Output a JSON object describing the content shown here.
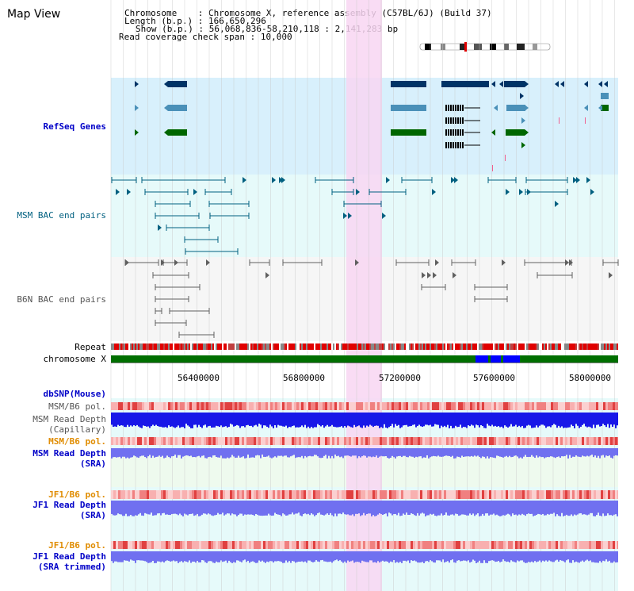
{
  "title": "Map View",
  "info": {
    "chromosome_key": "Chromosome",
    "chromosome_val": "Chromosome X, reference assembly (C57BL/6J) (Build 37)",
    "length_key": "Length (b.p.)",
    "length_val": "166,650,296",
    "show_key": "Show (b.p.)",
    "show_val": "56,068,836-58,210,118 : 2,141,283 bp",
    "span_key": "Read coverage check span",
    "span_val": "10,000"
  },
  "tracks": {
    "refseq": "RefSeq Genes",
    "msm_bac": "MSM BAC end pairs",
    "b6n_bac": "B6N BAC end pairs",
    "repeat": "Repeat",
    "chromosome": "chromosome X",
    "dbsnp": "dbSNP(Mouse)",
    "msm_b6_pol_1": "MSM/B6 pol.",
    "msm_depth_cap_1": "MSM Read Depth",
    "msm_depth_cap_2": "(Capillary)",
    "msm_b6_pol_2": "MSM/B6 pol.",
    "msm_depth_sra_1": "MSM Read Depth",
    "msm_depth_sra_2": "(SRA)",
    "jf1_b6_pol_1": "JF1/B6 pol.",
    "jf1_depth_sra_1": "JF1 Read Depth",
    "jf1_depth_sra_2": "(SRA)",
    "jf1_b6_pol_2": "JF1/B6 pol.",
    "jf1_depth_trim_1": "JF1 Read Depth",
    "jf1_depth_trim_2": "(SRA trimmed)"
  },
  "axis": {
    "ticks": [
      "56400000",
      "56800000",
      "57200000",
      "57600000",
      "58000000"
    ]
  },
  "colors": {
    "refseq_bg": "#d8f0fc",
    "msm_bac_bg": "#e6fafa",
    "b6n_bac_bg": "#f4f4f4",
    "highlight": "#f8d6f2",
    "chrom_green": "#006f00",
    "chrom_blue": "#0000ff",
    "gene_dark": "#003366",
    "gene_mid": "#4a90b8",
    "gene_green": "#006600",
    "bac_teal": "#006080",
    "bac_gray": "#606060",
    "depth_dark": "#1818e8",
    "depth_light": "#7070f0"
  }
}
